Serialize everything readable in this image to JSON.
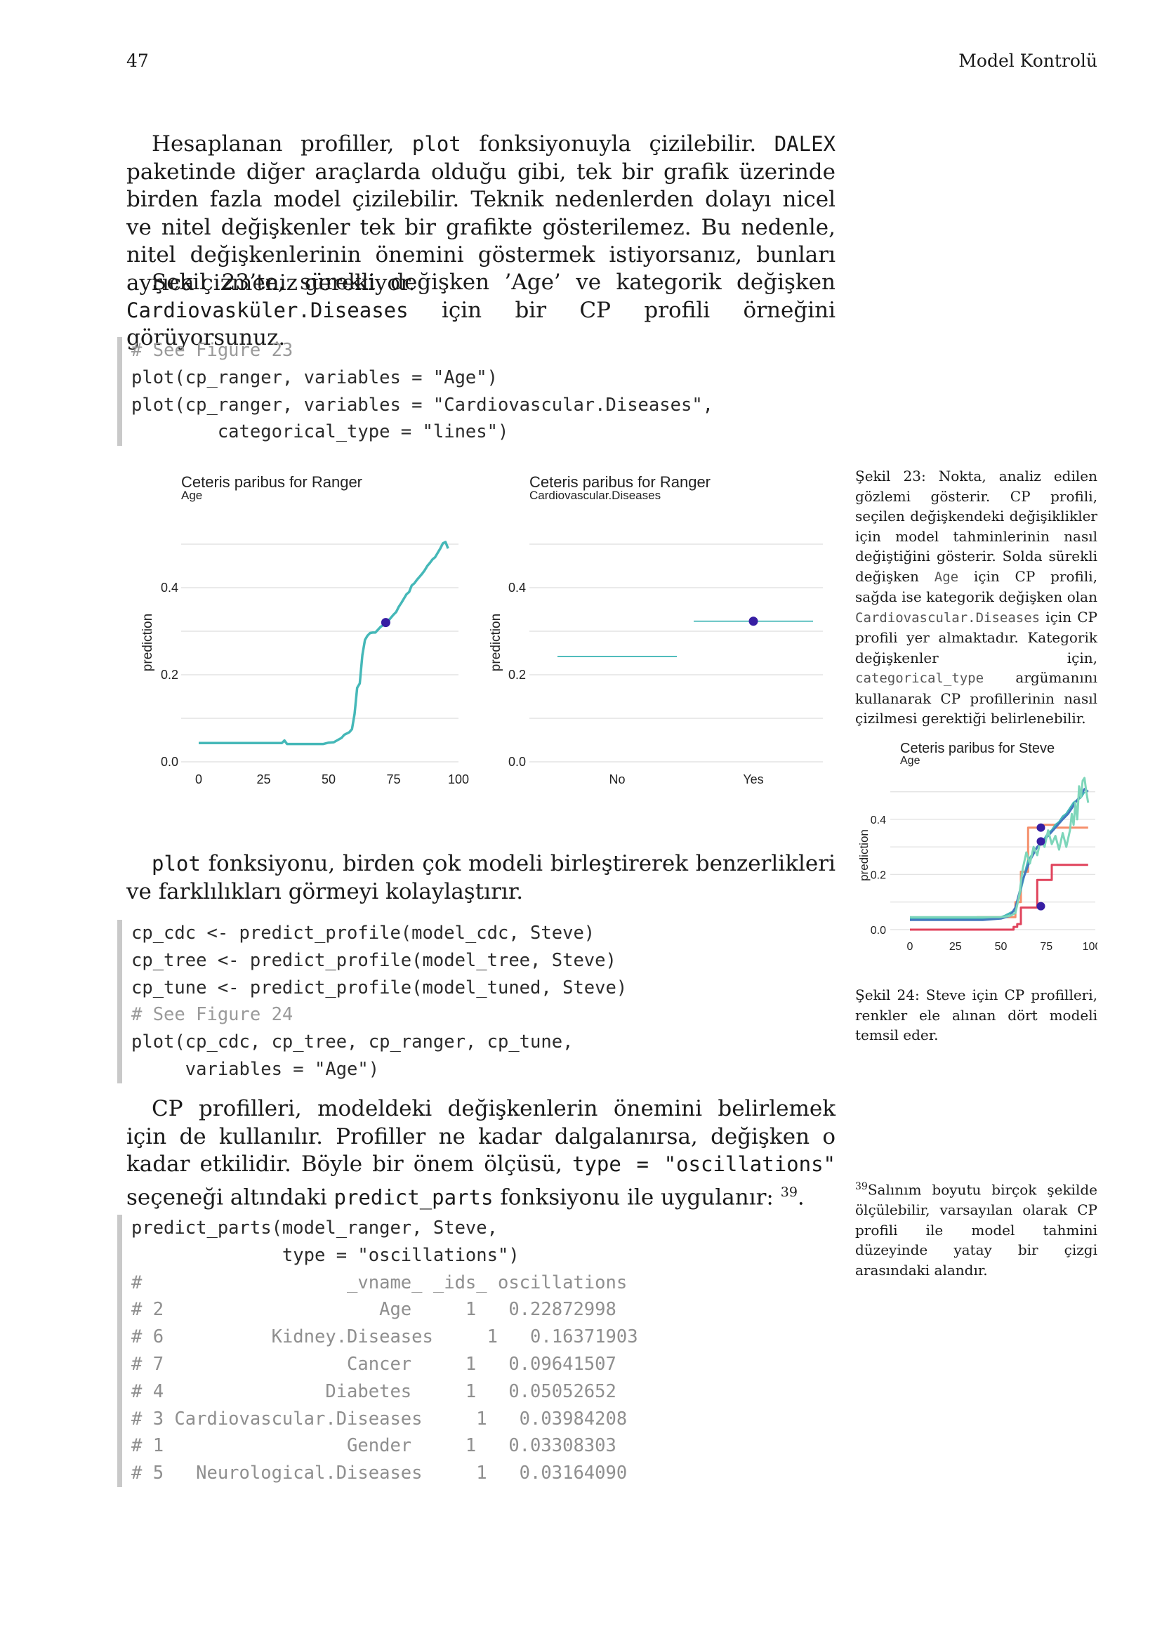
{
  "header": {
    "page_number": "47",
    "chapter": "Model Kontrolü"
  },
  "para1": {
    "a": "Hesaplanan profiller, ",
    "code1": "plot",
    "b": " fonksiyonuyla çizilebilir. ",
    "code2": "DALEX",
    "c": " paketinde diğer araçlarda olduğu gibi, tek bir grafik üzerinde birden fazla model çizilebilir. Teknik nedenlerden dolayı nicel ve nitel değişkenler tek bir grafikte gösterilemez. Bu nedenle, nitel değişkenlerinin önemini göstermek istiyorsanız, bunları ayrıca çizmeniz gerekiyor."
  },
  "para2": {
    "a": "Şekil 23’te, sürekli değişken ’Age’ ve kategorik değişken ",
    "code": "Cardiovasküler.Diseases",
    "b": " için bir CP profili örneğini görüyorsunuz."
  },
  "code1": {
    "lines": [
      "# See Figure 23",
      "plot(cp_ranger, variables = \"Age\")",
      "plot(cp_ranger, variables = \"Cardiovascular.Diseases\",",
      "        categorical_type = \"lines\")"
    ]
  },
  "para3": {
    "code": "plot",
    "a": " fonksiyonu, birden çok modeli birleştirerek benzerlikleri ve farklılıkları görmeyi kolaylaştırır."
  },
  "code2": {
    "lines": [
      "cp_cdc <- predict_profile(model_cdc, Steve)",
      "cp_tree <- predict_profile(model_tree, Steve)",
      "cp_tune <- predict_profile(model_tuned, Steve)",
      "# See Figure 24",
      "plot(cp_cdc, cp_tree, cp_ranger, cp_tune,",
      "     variables = \"Age\")"
    ]
  },
  "para4": {
    "a": "CP profilleri, modeldeki değişkenlerin önemini belirlemek için de kullanılır. Profiller ne kadar dalgalanırsa, değişken o kadar etkilidir. Böyle bir önem ölçüsü, ",
    "code1": "type = \"oscillations\"",
    "b": " seçeneği altındaki ",
    "code2": "predict_parts",
    "c": " fonksiyonu ile uygulanır: ",
    "footnote_ref": "39",
    "d": "."
  },
  "code3": {
    "lines": [
      "predict_parts(model_ranger, Steve,",
      "              type = \"oscillations\")"
    ],
    "output": [
      "#                   _vname_ _ids_ oscillations",
      "# 2                    Age     1   0.22872998",
      "# 6          Kidney.Diseases     1   0.16371903",
      "# 7                 Cancer     1   0.09641507",
      "# 4               Diabetes     1   0.05052652",
      "# 3 Cardiovascular.Diseases     1   0.03984208",
      "# 1                 Gender     1   0.03308303",
      "# 5   Neurological.Diseases     1   0.03164090"
    ]
  },
  "caption23": {
    "a": "Şekil 23: Nokta, analiz edilen gözlemi gösterir. CP profili, seçilen değişkendeki değişiklikler için model tahminlerinin nasıl değiştiğini gösterir. Solda sürekli değişken ",
    "code1": "Age",
    "b": " için CP profili, sağda ise kategorik değişken olan ",
    "code2": "Cardiovascular.Diseases",
    "c": " için CP profili yer almaktadır. Kategorik değişkenler için, ",
    "code3": "categorical_type",
    "d": " argümanını kullanarak CP profillerinin nasıl çizilmesi gerektiği belirlenebilir."
  },
  "caption24": "Şekil 24: Steve için CP profilleri, renkler ele alınan dört modeli temsil eder.",
  "footnote39": {
    "num": "39",
    "text": "Salınım boyutu birçok şekilde ölçülebilir, varsayılan olarak CP profili ile model tahmini düzeyinde yatay bir çizgi arasındaki alandır."
  },
  "colors": {
    "ranger": "#45b8b8",
    "cdc": "#4378bf",
    "tree": "#f58f6b",
    "tune": "#7ed6ba",
    "red": "#e0435c",
    "point": "#371ea3"
  },
  "chart_data": [
    {
      "type": "line",
      "title": "Ceteris paribus for Ranger",
      "subtitle": "Age",
      "xlabel": "",
      "ylabel": "prediction",
      "xlim": [
        0,
        100
      ],
      "ylim": [
        0,
        0.5
      ],
      "xticks": [
        "0",
        "25",
        "50",
        "75",
        "100"
      ],
      "yticks": [
        "0.0",
        "0.2",
        "0.4"
      ],
      "series": [
        {
          "x": [
            0,
            10,
            20,
            30,
            32,
            33,
            34,
            36,
            40,
            48,
            50,
            52,
            55,
            56,
            58,
            59,
            60,
            61,
            62,
            63,
            64,
            65,
            66,
            67,
            68,
            70,
            72,
            73,
            75,
            76,
            77,
            78,
            79,
            80,
            81,
            82,
            83,
            84,
            85,
            86,
            87,
            88,
            89,
            90,
            91,
            92,
            93,
            94,
            95,
            96
          ],
          "y": [
            0.043,
            0.043,
            0.043,
            0.043,
            0.043,
            0.049,
            0.041,
            0.041,
            0.041,
            0.041,
            0.044,
            0.045,
            0.055,
            0.062,
            0.068,
            0.075,
            0.11,
            0.17,
            0.18,
            0.245,
            0.28,
            0.29,
            0.296,
            0.297,
            0.297,
            0.31,
            0.318,
            0.324,
            0.338,
            0.344,
            0.356,
            0.365,
            0.375,
            0.385,
            0.39,
            0.405,
            0.41,
            0.418,
            0.425,
            0.432,
            0.44,
            0.45,
            0.457,
            0.465,
            0.47,
            0.48,
            0.49,
            0.502,
            0.505,
            0.49
          ]
        }
      ],
      "point": {
        "x": 72,
        "y": 0.32
      }
    },
    {
      "type": "line",
      "title": "Ceteris paribus for Ranger",
      "subtitle": "Cardiovascular.Diseases",
      "xlabel": "",
      "ylabel": "prediction",
      "ylim": [
        0,
        0.5
      ],
      "categories": [
        "No",
        "Yes"
      ],
      "yticks": [
        "0.0",
        "0.2",
        "0.4"
      ],
      "values": [
        0.242,
        0.323
      ],
      "point": {
        "category": "Yes",
        "y": 0.323
      }
    },
    {
      "type": "line",
      "title": "Ceteris paribus for Steve",
      "subtitle": "Age",
      "xlabel": "",
      "ylabel": "prediction",
      "xlim": [
        0,
        100
      ],
      "ylim": [
        0,
        0.55
      ],
      "xticks": [
        "0",
        "25",
        "50",
        "75",
        "100"
      ],
      "yticks": [
        "0.0",
        "0.2",
        "0.4"
      ],
      "series": [
        {
          "color": "#e0435c",
          "x": [
            0,
            57,
            57,
            59,
            59,
            61,
            61,
            70,
            70,
            78,
            78,
            98
          ],
          "y": [
            0.0,
            0.0,
            0.01,
            0.01,
            0.02,
            0.02,
            0.08,
            0.08,
            0.18,
            0.18,
            0.235,
            0.235
          ]
        },
        {
          "color": "#f58f6b",
          "x": [
            0,
            37,
            37,
            58,
            58,
            61,
            61,
            65,
            65,
            72,
            72,
            80,
            80,
            98
          ],
          "y": [
            0.04,
            0.04,
            0.045,
            0.045,
            0.1,
            0.1,
            0.21,
            0.21,
            0.37,
            0.37,
            0.38,
            0.38,
            0.37,
            0.37
          ]
        },
        {
          "color": "#45b8b8",
          "x": [
            0,
            30,
            48,
            52,
            55,
            58,
            60,
            63,
            65,
            68,
            70,
            72,
            74,
            76,
            78,
            80,
            82,
            84,
            86,
            88,
            90,
            92,
            94,
            96
          ],
          "y": [
            0.04,
            0.04,
            0.04,
            0.05,
            0.06,
            0.07,
            0.12,
            0.2,
            0.25,
            0.28,
            0.3,
            0.31,
            0.33,
            0.35,
            0.36,
            0.38,
            0.39,
            0.41,
            0.42,
            0.44,
            0.46,
            0.47,
            0.48,
            0.5
          ]
        },
        {
          "color": "#4378bf",
          "x": [
            0,
            40,
            50,
            55,
            58,
            62,
            66,
            70,
            73,
            76,
            80,
            84,
            87,
            90,
            93,
            96,
            98
          ],
          "y": [
            0.035,
            0.035,
            0.04,
            0.05,
            0.08,
            0.18,
            0.25,
            0.3,
            0.32,
            0.34,
            0.37,
            0.4,
            0.42,
            0.45,
            0.48,
            0.51,
            0.5
          ]
        },
        {
          "color": "#7ed6ba",
          "x": [
            0,
            50,
            55,
            58,
            60,
            62,
            64,
            66,
            68,
            70,
            72,
            74,
            76,
            78,
            80,
            82,
            84,
            86,
            88,
            89,
            90,
            91,
            92,
            93,
            94,
            95,
            96,
            97,
            98
          ],
          "y": [
            0.045,
            0.045,
            0.05,
            0.06,
            0.12,
            0.22,
            0.28,
            0.24,
            0.3,
            0.27,
            0.33,
            0.3,
            0.36,
            0.31,
            0.34,
            0.29,
            0.35,
            0.3,
            0.36,
            0.42,
            0.38,
            0.46,
            0.4,
            0.52,
            0.48,
            0.54,
            0.55,
            0.5,
            0.46
          ]
        }
      ],
      "points": [
        {
          "x": 72,
          "y": 0.37
        },
        {
          "x": 72,
          "y": 0.32
        },
        {
          "x": 72,
          "y": 0.085
        }
      ]
    }
  ]
}
